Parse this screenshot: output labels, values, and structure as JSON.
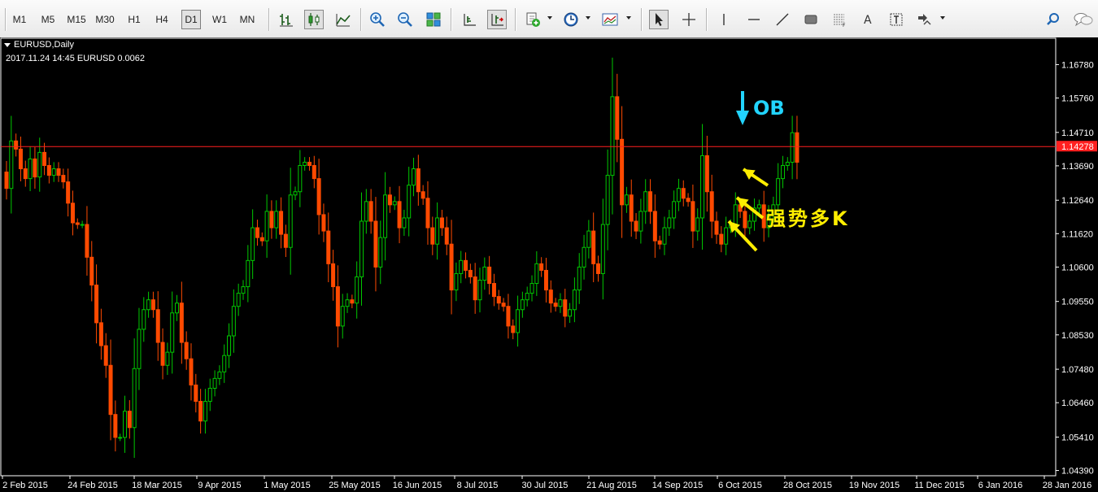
{
  "toolbar": {
    "timeframes": [
      "M1",
      "M5",
      "M15",
      "M30",
      "H1",
      "H4",
      "D1",
      "W1",
      "MN"
    ],
    "active_timeframe": "D1"
  },
  "chart_header": {
    "symbol_period": "EURUSD,Daily",
    "info": "2017.11.24 14:45 EURUSD 0.0062"
  },
  "current_price_label": "1.14278",
  "annotations": {
    "ob": "OB",
    "strong_bull": "强势多K"
  },
  "colors": {
    "background": "#000000",
    "bull": "#00c800",
    "bear": "#ff4a00",
    "price_line": "#ff2020",
    "ob_arrow": "#22d4ff",
    "yellow_arrow": "#ffee00"
  },
  "chart_data": {
    "type": "candlestick",
    "y_axis_ticks": [
      "1.16780",
      "1.15760",
      "1.14710",
      "1.13690",
      "1.12640",
      "1.11620",
      "1.10600",
      "1.09550",
      "1.08530",
      "1.07480",
      "1.06460",
      "1.05410",
      "1.04390"
    ],
    "x_axis_ticks": [
      "2 Feb 2015",
      "24 Feb 2015",
      "18 Mar 2015",
      "9 Apr 2015",
      "1 May 2015",
      "25 May 2015",
      "16 Jun 2015",
      "8 Jul 2015",
      "30 Jul 2015",
      "21 Aug 2015",
      "14 Sep 2015",
      "6 Oct 2015",
      "28 Oct 2015",
      "19 Nov 2015",
      "11 Dec 2015",
      "6 Jan 2016",
      "28 Jan 2016"
    ],
    "ylim": [
      1.0423,
      1.1761
    ],
    "horizontal_line": 1.14278,
    "series": [
      {
        "values": [
          1.13,
          1.1445,
          1.142,
          1.136,
          1.133,
          1.139,
          1.1335,
          1.141,
          1.137,
          1.134,
          1.136,
          1.134,
          1.132,
          1.1255,
          1.1195,
          1.119,
          1.119,
          1.109,
          1.1005,
          1.089,
          1.082,
          1.076,
          1.061,
          1.054,
          1.054,
          1.062,
          1.057,
          1.075,
          1.087,
          1.093,
          1.096,
          1.093,
          1.083,
          1.076,
          1.08,
          1.092,
          1.095,
          1.083,
          1.078,
          1.07,
          1.065,
          1.059,
          1.065,
          1.069,
          1.072,
          1.074,
          1.079,
          1.085,
          1.094,
          1.098,
          1.1,
          1.108,
          1.118,
          1.115,
          1.114,
          1.123,
          1.118,
          1.123,
          1.116,
          1.112,
          1.128,
          1.129,
          1.137,
          1.138,
          1.137,
          1.133,
          1.122,
          1.117,
          1.107,
          1.1,
          1.088,
          1.094,
          1.096,
          1.095,
          1.103,
          1.12,
          1.126,
          1.12,
          1.106,
          1.115,
          1.128,
          1.125,
          1.126,
          1.118,
          1.121,
          1.131,
          1.136,
          1.129,
          1.127,
          1.118,
          1.113,
          1.121,
          1.118,
          1.113,
          1.099,
          1.104,
          1.108,
          1.105,
          1.103,
          1.096,
          1.102,
          1.106,
          1.101,
          1.097,
          1.095,
          1.094,
          1.088,
          1.086,
          1.093,
          1.096,
          1.098,
          1.101,
          1.107,
          1.105,
          1.099,
          1.095,
          1.094,
          1.096,
          1.091,
          1.093,
          1.099,
          1.106,
          1.112,
          1.117,
          1.107,
          1.104,
          1.119,
          1.134,
          1.158,
          1.145,
          1.125,
          1.128,
          1.12,
          1.117,
          1.123,
          1.129,
          1.123,
          1.114,
          1.113,
          1.118,
          1.121,
          1.126,
          1.13,
          1.127,
          1.126,
          1.117,
          1.121,
          1.14,
          1.129,
          1.12,
          1.116,
          1.113,
          1.118,
          1.119,
          1.125,
          1.123,
          1.118,
          1.12,
          1.124,
          1.125,
          1.118,
          1.122,
          1.125,
          1.133,
          1.137,
          1.138,
          1.147,
          1.138
        ],
        "open": [
          1.135,
          1.13,
          1.1445,
          1.142,
          1.136,
          1.133,
          1.139,
          1.1335,
          1.141,
          1.137,
          1.134,
          1.136,
          1.134,
          1.132,
          1.1255,
          1.1195,
          1.119,
          1.119,
          1.109,
          1.1005,
          1.089,
          1.082,
          1.076,
          1.061,
          1.054,
          1.054,
          1.062,
          1.057,
          1.075,
          1.087,
          1.093,
          1.096,
          1.093,
          1.083,
          1.076,
          1.08,
          1.092,
          1.095,
          1.083,
          1.078,
          1.07,
          1.065,
          1.059,
          1.065,
          1.069,
          1.072,
          1.074,
          1.079,
          1.085,
          1.094,
          1.098,
          1.1,
          1.108,
          1.118,
          1.115,
          1.114,
          1.123,
          1.118,
          1.123,
          1.116,
          1.112,
          1.128,
          1.129,
          1.137,
          1.138,
          1.137,
          1.133,
          1.122,
          1.117,
          1.107,
          1.1,
          1.088,
          1.094,
          1.096,
          1.095,
          1.103,
          1.12,
          1.126,
          1.12,
          1.106,
          1.115,
          1.128,
          1.125,
          1.126,
          1.118,
          1.121,
          1.131,
          1.136,
          1.129,
          1.127,
          1.118,
          1.113,
          1.121,
          1.118,
          1.113,
          1.099,
          1.104,
          1.108,
          1.105,
          1.103,
          1.096,
          1.102,
          1.106,
          1.101,
          1.097,
          1.095,
          1.094,
          1.088,
          1.086,
          1.093,
          1.096,
          1.098,
          1.101,
          1.107,
          1.105,
          1.099,
          1.095,
          1.094,
          1.096,
          1.091,
          1.093,
          1.099,
          1.106,
          1.112,
          1.117,
          1.107,
          1.104,
          1.119,
          1.134,
          1.158,
          1.145,
          1.125,
          1.128,
          1.12,
          1.117,
          1.123,
          1.129,
          1.123,
          1.114,
          1.113,
          1.118,
          1.121,
          1.126,
          1.13,
          1.127,
          1.126,
          1.117,
          1.121,
          1.14,
          1.129,
          1.12,
          1.116,
          1.113,
          1.118,
          1.119,
          1.125,
          1.123,
          1.118,
          1.12,
          1.124,
          1.125,
          1.118,
          1.122,
          1.125,
          1.133,
          1.137,
          1.138,
          1.147
        ]
      }
    ]
  }
}
